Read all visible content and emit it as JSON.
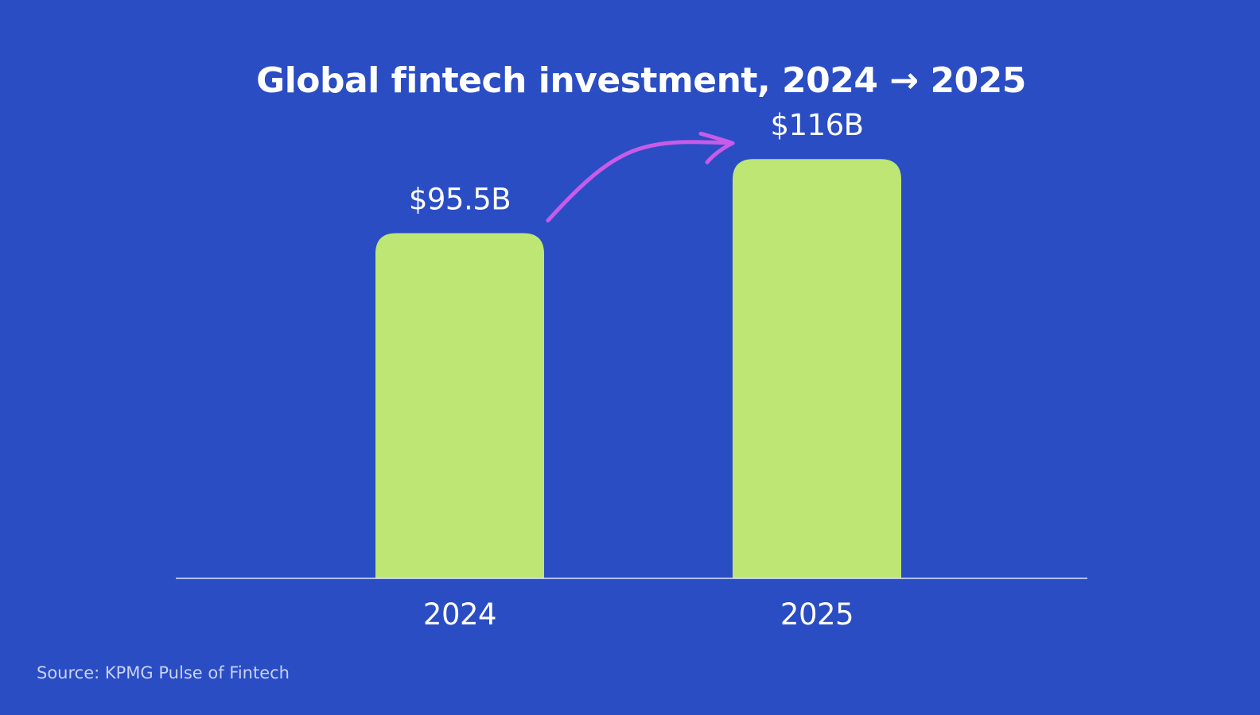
{
  "colors": {
    "background": "#2a4dc4",
    "bar": "#bde674",
    "text": "#ffffff",
    "axis": "#dfe6ff",
    "arrow": "#c85be8",
    "source": "#c7d2f4"
  },
  "chart_data": {
    "type": "bar",
    "title": "Global fintech investment, 2024 → 2025",
    "categories": [
      "2024",
      "2025"
    ],
    "values": [
      95.5,
      116
    ],
    "value_labels": [
      "$95.5B",
      "$116B"
    ],
    "xlabel": "",
    "ylabel": "",
    "ylim": [
      0,
      160
    ],
    "grid": false,
    "legend": "none",
    "annotation": {
      "type": "arrow",
      "from": "2024",
      "to": "2025",
      "color": "#c85be8"
    }
  },
  "source": "Source: KPMG Pulse of Fintech"
}
